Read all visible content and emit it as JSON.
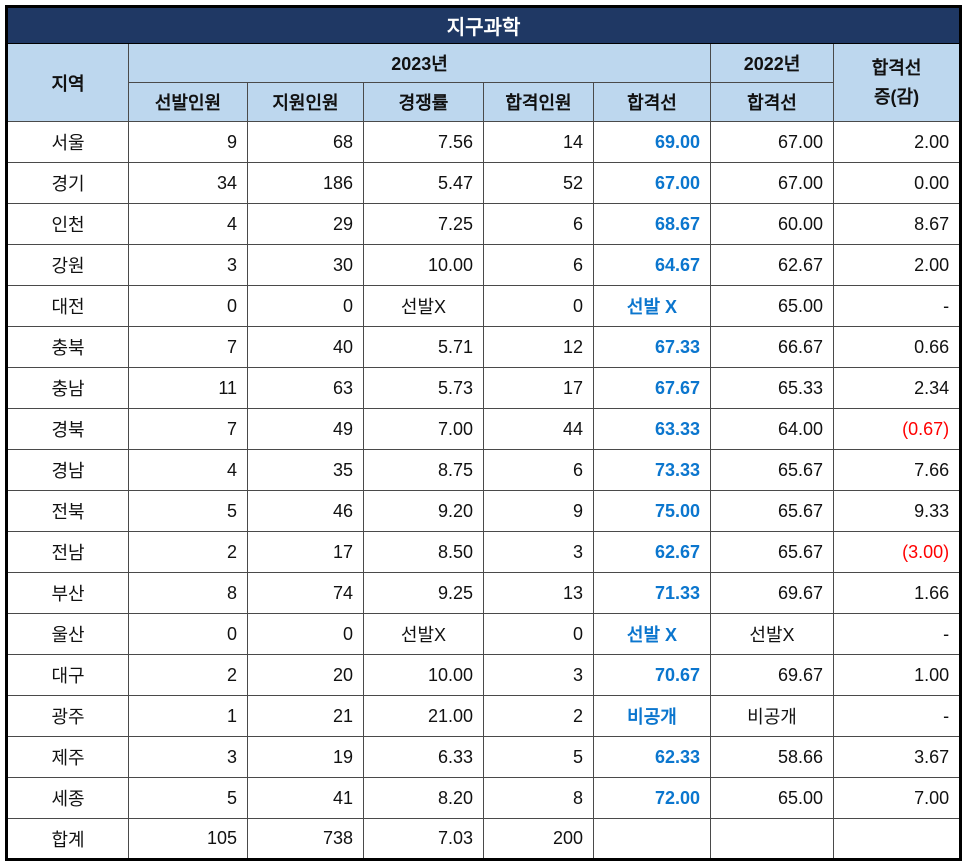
{
  "chart_data": {
    "type": "table",
    "title": "지구과학",
    "header": {
      "region": "지역",
      "year_2023": "2023년",
      "year_2022": "2022년",
      "change_line1": "합격선",
      "change_line2": "증(감)",
      "sub": [
        "선발인원",
        "지원인원",
        "경쟁률",
        "합격인원",
        "합격선",
        "합격선"
      ]
    },
    "rows": [
      {
        "region": "서울",
        "cells": [
          {
            "v": "9"
          },
          {
            "v": "68"
          },
          {
            "v": "7.56"
          },
          {
            "v": "14"
          },
          {
            "v": "69.00",
            "s": "blue"
          },
          {
            "v": "67.00"
          },
          {
            "v": "2.00"
          }
        ]
      },
      {
        "region": "경기",
        "cells": [
          {
            "v": "34"
          },
          {
            "v": "186"
          },
          {
            "v": "5.47"
          },
          {
            "v": "52"
          },
          {
            "v": "67.00",
            "s": "blue"
          },
          {
            "v": "67.00"
          },
          {
            "v": "0.00"
          }
        ]
      },
      {
        "region": "인천",
        "cells": [
          {
            "v": "4"
          },
          {
            "v": "29"
          },
          {
            "v": "7.25"
          },
          {
            "v": "6"
          },
          {
            "v": "68.67",
            "s": "blue"
          },
          {
            "v": "60.00"
          },
          {
            "v": "8.67"
          }
        ]
      },
      {
        "region": "강원",
        "cells": [
          {
            "v": "3"
          },
          {
            "v": "30"
          },
          {
            "v": "10.00"
          },
          {
            "v": "6"
          },
          {
            "v": "64.67",
            "s": "blue"
          },
          {
            "v": "62.67"
          },
          {
            "v": "2.00"
          }
        ]
      },
      {
        "region": "대전",
        "cells": [
          {
            "v": "0"
          },
          {
            "v": "0"
          },
          {
            "v": "선발X",
            "a": "center"
          },
          {
            "v": "0"
          },
          {
            "v": "선발 X",
            "s": "blue",
            "a": "center"
          },
          {
            "v": "65.00"
          },
          {
            "v": "-"
          }
        ]
      },
      {
        "region": "충북",
        "cells": [
          {
            "v": "7"
          },
          {
            "v": "40"
          },
          {
            "v": "5.71"
          },
          {
            "v": "12"
          },
          {
            "v": "67.33",
            "s": "blue"
          },
          {
            "v": "66.67"
          },
          {
            "v": "0.66"
          }
        ]
      },
      {
        "region": "충남",
        "cells": [
          {
            "v": "11"
          },
          {
            "v": "63"
          },
          {
            "v": "5.73"
          },
          {
            "v": "17"
          },
          {
            "v": "67.67",
            "s": "blue"
          },
          {
            "v": "65.33"
          },
          {
            "v": "2.34"
          }
        ]
      },
      {
        "region": "경북",
        "cells": [
          {
            "v": "7"
          },
          {
            "v": "49"
          },
          {
            "v": "7.00"
          },
          {
            "v": "44"
          },
          {
            "v": "63.33",
            "s": "blue"
          },
          {
            "v": "64.00"
          },
          {
            "v": "(0.67)",
            "s": "red"
          }
        ]
      },
      {
        "region": "경남",
        "cells": [
          {
            "v": "4"
          },
          {
            "v": "35"
          },
          {
            "v": "8.75"
          },
          {
            "v": "6"
          },
          {
            "v": "73.33",
            "s": "blue"
          },
          {
            "v": "65.67"
          },
          {
            "v": "7.66"
          }
        ]
      },
      {
        "region": "전북",
        "cells": [
          {
            "v": "5"
          },
          {
            "v": "46"
          },
          {
            "v": "9.20"
          },
          {
            "v": "9"
          },
          {
            "v": "75.00",
            "s": "blue"
          },
          {
            "v": "65.67"
          },
          {
            "v": "9.33"
          }
        ]
      },
      {
        "region": "전남",
        "cells": [
          {
            "v": "2"
          },
          {
            "v": "17"
          },
          {
            "v": "8.50"
          },
          {
            "v": "3"
          },
          {
            "v": "62.67",
            "s": "blue"
          },
          {
            "v": "65.67"
          },
          {
            "v": "(3.00)",
            "s": "red"
          }
        ]
      },
      {
        "region": "부산",
        "cells": [
          {
            "v": "8"
          },
          {
            "v": "74"
          },
          {
            "v": "9.25"
          },
          {
            "v": "13"
          },
          {
            "v": "71.33",
            "s": "blue"
          },
          {
            "v": "69.67"
          },
          {
            "v": "1.66"
          }
        ]
      },
      {
        "region": "울산",
        "cells": [
          {
            "v": "0"
          },
          {
            "v": "0"
          },
          {
            "v": "선발X",
            "a": "center"
          },
          {
            "v": "0"
          },
          {
            "v": "선발 X",
            "s": "blue",
            "a": "center"
          },
          {
            "v": "선발X",
            "a": "center"
          },
          {
            "v": "-"
          }
        ]
      },
      {
        "region": "대구",
        "cells": [
          {
            "v": "2"
          },
          {
            "v": "20"
          },
          {
            "v": "10.00"
          },
          {
            "v": "3"
          },
          {
            "v": "70.67",
            "s": "blue"
          },
          {
            "v": "69.67"
          },
          {
            "v": "1.00"
          }
        ]
      },
      {
        "region": "광주",
        "cells": [
          {
            "v": "1"
          },
          {
            "v": "21"
          },
          {
            "v": "21.00"
          },
          {
            "v": "2"
          },
          {
            "v": "비공개",
            "s": "blue",
            "a": "center"
          },
          {
            "v": "비공개",
            "a": "center"
          },
          {
            "v": "-"
          }
        ]
      },
      {
        "region": "제주",
        "cells": [
          {
            "v": "3"
          },
          {
            "v": "19"
          },
          {
            "v": "6.33"
          },
          {
            "v": "5"
          },
          {
            "v": "62.33",
            "s": "blue"
          },
          {
            "v": "58.66"
          },
          {
            "v": "3.67"
          }
        ]
      },
      {
        "region": "세종",
        "cells": [
          {
            "v": "5"
          },
          {
            "v": "41"
          },
          {
            "v": "8.20"
          },
          {
            "v": "8"
          },
          {
            "v": "72.00",
            "s": "blue"
          },
          {
            "v": "65.00"
          },
          {
            "v": "7.00"
          }
        ]
      },
      {
        "region": "합계",
        "cells": [
          {
            "v": "105"
          },
          {
            "v": "738"
          },
          {
            "v": "7.03"
          },
          {
            "v": "200"
          },
          {
            "v": ""
          },
          {
            "v": ""
          },
          {
            "v": ""
          }
        ]
      }
    ]
  },
  "colors": {
    "title_bg": "#1F3864",
    "title_text": "#FFFFFF",
    "header_bg": "#BDD7EE",
    "accent_blue": "#0B76CE",
    "negative_red": "#FF0000",
    "grid": "#4a4a4a"
  }
}
